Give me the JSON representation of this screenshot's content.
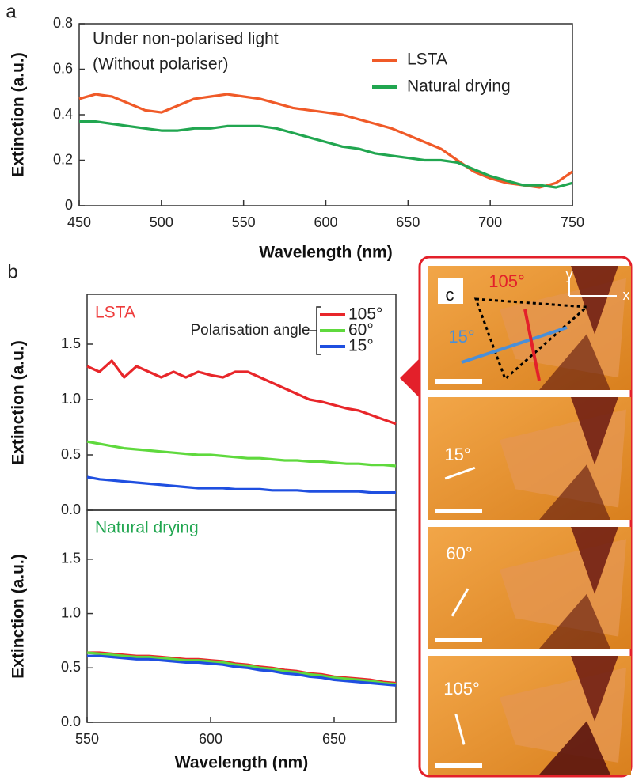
{
  "chart_data": [
    {
      "type": "line",
      "panel": "a",
      "xlabel": "Wavelength (nm)",
      "ylabel": "Extinction (a.u.)",
      "annotations": [
        "Under non-polarised light",
        "(Without polariser)"
      ],
      "x": [
        450,
        460,
        470,
        480,
        490,
        500,
        510,
        520,
        530,
        540,
        550,
        560,
        570,
        580,
        590,
        600,
        610,
        620,
        630,
        640,
        650,
        660,
        670,
        680,
        690,
        700,
        710,
        720,
        730,
        740,
        750
      ],
      "series": [
        {
          "name": "LSTA",
          "color": "#f05a28",
          "values": [
            0.47,
            0.49,
            0.48,
            0.45,
            0.42,
            0.41,
            0.44,
            0.47,
            0.48,
            0.49,
            0.48,
            0.47,
            0.45,
            0.43,
            0.42,
            0.41,
            0.4,
            0.38,
            0.36,
            0.34,
            0.31,
            0.28,
            0.25,
            0.2,
            0.15,
            0.12,
            0.1,
            0.09,
            0.08,
            0.1,
            0.15
          ]
        },
        {
          "name": "Natural drying",
          "color": "#21a650",
          "values": [
            0.37,
            0.37,
            0.36,
            0.35,
            0.34,
            0.33,
            0.33,
            0.34,
            0.34,
            0.35,
            0.35,
            0.35,
            0.34,
            0.32,
            0.3,
            0.28,
            0.26,
            0.25,
            0.23,
            0.22,
            0.21,
            0.2,
            0.2,
            0.19,
            0.16,
            0.13,
            0.11,
            0.09,
            0.09,
            0.08,
            0.1
          ]
        }
      ],
      "xlim": [
        450,
        750
      ],
      "xticks": [
        450,
        500,
        550,
        600,
        650,
        700,
        750
      ],
      "ylim": [
        0,
        0.8
      ],
      "yticks": [
        0,
        0.2,
        0.4,
        0.6,
        0.8
      ]
    },
    {
      "type": "line",
      "panel": "b",
      "ylabel": "Extinction (a.u.)",
      "label": "LSTA",
      "label_color": "#ee3b3b",
      "legend_title": "Polarisation angle",
      "x": [
        550,
        555,
        560,
        565,
        570,
        575,
        580,
        585,
        590,
        595,
        600,
        605,
        610,
        615,
        620,
        625,
        630,
        635,
        640,
        645,
        650,
        655,
        660,
        665,
        670,
        675
      ],
      "series": [
        {
          "name": "105°",
          "color": "#e8262a",
          "values": [
            1.3,
            1.25,
            1.35,
            1.2,
            1.3,
            1.25,
            1.2,
            1.25,
            1.2,
            1.25,
            1.22,
            1.2,
            1.25,
            1.25,
            1.2,
            1.15,
            1.1,
            1.05,
            1.0,
            0.98,
            0.95,
            0.92,
            0.9,
            0.86,
            0.82,
            0.78
          ]
        },
        {
          "name": "60°",
          "color": "#5fd93d",
          "values": [
            0.62,
            0.6,
            0.58,
            0.56,
            0.55,
            0.54,
            0.53,
            0.52,
            0.51,
            0.5,
            0.5,
            0.49,
            0.48,
            0.47,
            0.47,
            0.46,
            0.45,
            0.45,
            0.44,
            0.44,
            0.43,
            0.42,
            0.42,
            0.41,
            0.41,
            0.4
          ]
        },
        {
          "name": "15°",
          "color": "#1f4fe0",
          "values": [
            0.3,
            0.28,
            0.27,
            0.26,
            0.25,
            0.24,
            0.23,
            0.22,
            0.21,
            0.2,
            0.2,
            0.2,
            0.19,
            0.19,
            0.19,
            0.18,
            0.18,
            0.18,
            0.17,
            0.17,
            0.17,
            0.17,
            0.17,
            0.16,
            0.16,
            0.16
          ]
        }
      ],
      "xlim": [
        550,
        675
      ],
      "ylim": [
        0,
        1.95
      ],
      "yticks": [
        {
          "value": 0,
          "label": "0.0"
        },
        0.5,
        {
          "value": 1,
          "label": "1.0"
        },
        1.5
      ]
    },
    {
      "type": "line",
      "xlabel": "Wavelength (nm)",
      "ylabel": "Extinction (a.u.)",
      "label": "Natural drying",
      "label_color": "#21a650",
      "x": [
        550,
        555,
        560,
        565,
        570,
        575,
        580,
        585,
        590,
        595,
        600,
        605,
        610,
        615,
        620,
        625,
        630,
        635,
        640,
        645,
        650,
        655,
        660,
        665,
        670,
        675
      ],
      "series": [
        {
          "color": "#e8262a",
          "values": [
            0.64,
            0.64,
            0.63,
            0.62,
            0.61,
            0.61,
            0.6,
            0.59,
            0.58,
            0.58,
            0.57,
            0.56,
            0.54,
            0.53,
            0.51,
            0.5,
            0.48,
            0.47,
            0.45,
            0.44,
            0.42,
            0.41,
            0.4,
            0.39,
            0.37,
            0.36
          ]
        },
        {
          "color": "#5fd93d",
          "values": [
            0.64,
            0.63,
            0.62,
            0.61,
            0.6,
            0.6,
            0.59,
            0.58,
            0.57,
            0.57,
            0.56,
            0.55,
            0.53,
            0.52,
            0.5,
            0.49,
            0.47,
            0.46,
            0.44,
            0.43,
            0.41,
            0.4,
            0.39,
            0.38,
            0.36,
            0.35
          ]
        },
        {
          "color": "#1f4fe0",
          "values": [
            0.61,
            0.61,
            0.6,
            0.59,
            0.58,
            0.58,
            0.57,
            0.56,
            0.55,
            0.55,
            0.54,
            0.53,
            0.51,
            0.5,
            0.48,
            0.47,
            0.45,
            0.44,
            0.42,
            0.41,
            0.39,
            0.38,
            0.37,
            0.36,
            0.35,
            0.34
          ]
        }
      ],
      "xlim": [
        550,
        675
      ],
      "xticks": [
        550,
        600,
        650
      ],
      "ylim": [
        0,
        1.95
      ],
      "yticks": [
        {
          "value": 0,
          "label": "0.0"
        },
        0.5,
        {
          "value": 1,
          "label": "1.0"
        },
        1.5
      ]
    }
  ],
  "photos": {
    "panels": [
      {
        "labels": [
          "c",
          "105°",
          "15°",
          "y",
          "x"
        ]
      },
      {
        "labels": [
          "15°"
        ]
      },
      {
        "labels": [
          "60°"
        ]
      },
      {
        "labels": [
          "105°"
        ]
      }
    ]
  }
}
